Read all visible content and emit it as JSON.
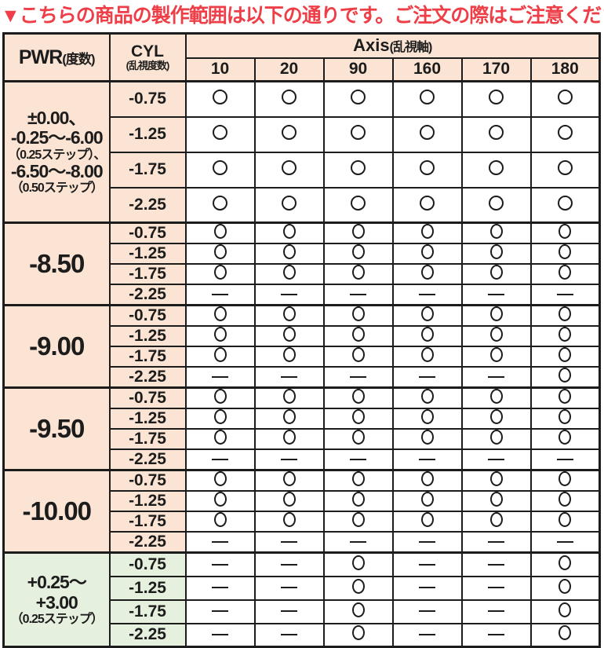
{
  "title": "▼こちらの商品の製作範囲は以下の通りです。ご注文の際はご注意ください。▼",
  "colors": {
    "warning_red": "#ee3e47",
    "header_peach": "#fbe4d3",
    "plus_range_green": "#e6f0de",
    "ink": "#1c1c1c",
    "cell_white": "#ffffff"
  },
  "symbols": {
    "available": "○",
    "unavailable": "—"
  },
  "table": {
    "pwr_header": {
      "main": "PWR",
      "sub": "(度数)"
    },
    "cyl_header": {
      "main": "CYL",
      "sub": "(乱視度数)"
    },
    "axis_header": {
      "main": "Axis",
      "sub": "(乱視軸)"
    },
    "axis_values": [
      "10",
      "20",
      "90",
      "160",
      "170",
      "180"
    ],
    "blocks": [
      {
        "theme": "peach",
        "circle_style": "round",
        "pwr_lines": [
          {
            "text": "±0.00、",
            "size": "big"
          },
          {
            "text": "-0.25～-6.00",
            "size": "big"
          },
          {
            "text": "（0.25ステップ）、",
            "size": "small"
          },
          {
            "text": "-6.50～-8.00",
            "size": "big"
          },
          {
            "text": "（0.50ステップ）",
            "size": "small"
          }
        ],
        "rows": [
          {
            "cyl": "-0.75",
            "cells": [
              "○",
              "○",
              "○",
              "○",
              "○",
              "○"
            ]
          },
          {
            "cyl": "-1.25",
            "cells": [
              "○",
              "○",
              "○",
              "○",
              "○",
              "○"
            ]
          },
          {
            "cyl": "-1.75",
            "cells": [
              "○",
              "○",
              "○",
              "○",
              "○",
              "○"
            ]
          },
          {
            "cyl": "-2.25",
            "cells": [
              "○",
              "○",
              "○",
              "○",
              "○",
              "○"
            ]
          }
        ]
      },
      {
        "theme": "peach",
        "circle_style": "oval",
        "pwr_lines": [
          {
            "text": "-8.50",
            "size": "xl"
          }
        ],
        "rows": [
          {
            "cyl": "-0.75",
            "cells": [
              "○",
              "○",
              "○",
              "○",
              "○",
              "○"
            ]
          },
          {
            "cyl": "-1.25",
            "cells": [
              "○",
              "○",
              "○",
              "○",
              "○",
              "○"
            ]
          },
          {
            "cyl": "-1.75",
            "cells": [
              "○",
              "○",
              "○",
              "○",
              "○",
              "○"
            ]
          },
          {
            "cyl": "-2.25",
            "cells": [
              "—",
              "—",
              "—",
              "—",
              "—",
              "—"
            ]
          }
        ]
      },
      {
        "theme": "peach",
        "circle_style": "oval",
        "pwr_lines": [
          {
            "text": "-9.00",
            "size": "xl"
          }
        ],
        "rows": [
          {
            "cyl": "-0.75",
            "cells": [
              "○",
              "○",
              "○",
              "○",
              "○",
              "○"
            ]
          },
          {
            "cyl": "-1.25",
            "cells": [
              "○",
              "○",
              "○",
              "○",
              "○",
              "○"
            ]
          },
          {
            "cyl": "-1.75",
            "cells": [
              "○",
              "○",
              "○",
              "○",
              "○",
              "○"
            ]
          },
          {
            "cyl": "-2.25",
            "cells": [
              "—",
              "—",
              "—",
              "—",
              "—",
              "○"
            ]
          }
        ]
      },
      {
        "theme": "peach",
        "circle_style": "oval",
        "pwr_lines": [
          {
            "text": "-9.50",
            "size": "xl"
          }
        ],
        "rows": [
          {
            "cyl": "-0.75",
            "cells": [
              "○",
              "○",
              "○",
              "○",
              "○",
              "○"
            ]
          },
          {
            "cyl": "-1.25",
            "cells": [
              "○",
              "○",
              "○",
              "○",
              "○",
              "○"
            ]
          },
          {
            "cyl": "-1.75",
            "cells": [
              "○",
              "○",
              "○",
              "○",
              "○",
              "○"
            ]
          },
          {
            "cyl": "-2.25",
            "cells": [
              "—",
              "—",
              "—",
              "—",
              "—",
              "—"
            ]
          }
        ]
      },
      {
        "theme": "peach",
        "circle_style": "oval",
        "pwr_lines": [
          {
            "text": "-10.00",
            "size": "xl"
          }
        ],
        "rows": [
          {
            "cyl": "-0.75",
            "cells": [
              "○",
              "○",
              "○",
              "○",
              "○",
              "○"
            ]
          },
          {
            "cyl": "-1.25",
            "cells": [
              "○",
              "○",
              "○",
              "○",
              "○",
              "○"
            ]
          },
          {
            "cyl": "-1.75",
            "cells": [
              "○",
              "○",
              "○",
              "○",
              "○",
              "○"
            ]
          },
          {
            "cyl": "-2.25",
            "cells": [
              "—",
              "—",
              "—",
              "—",
              "—",
              "—"
            ]
          }
        ]
      },
      {
        "theme": "green",
        "circle_style": "oval",
        "pwr_lines": [
          {
            "text": "+0.25～",
            "size": "big"
          },
          {
            "text": "+3.00",
            "size": "big"
          },
          {
            "text": "（0.25ステップ）",
            "size": "small"
          }
        ],
        "rows": [
          {
            "cyl": "-0.75",
            "cells": [
              "—",
              "—",
              "○",
              "—",
              "—",
              "○"
            ]
          },
          {
            "cyl": "-1.25",
            "cells": [
              "—",
              "—",
              "○",
              "—",
              "—",
              "○"
            ]
          },
          {
            "cyl": "-1.75",
            "cells": [
              "—",
              "—",
              "○",
              "—",
              "—",
              "○"
            ]
          },
          {
            "cyl": "-2.25",
            "cells": [
              "—",
              "—",
              "○",
              "—",
              "—",
              "○"
            ]
          }
        ]
      }
    ]
  },
  "chart_data": {
    "type": "table",
    "title": "▼こちらの商品の製作範囲は以下の通りです。ご注文の際はご注意ください。▼",
    "columns": [
      "PWR(度数)",
      "CYL(乱視度数)",
      "10",
      "20",
      "90",
      "160",
      "170",
      "180"
    ],
    "legend": {
      "○": "available",
      "—": "unavailable"
    },
    "rows": [
      [
        "±0.00、-0.25～-6.00（0.25ステップ）、-6.50～-8.00（0.50ステップ）",
        "-0.75",
        "○",
        "○",
        "○",
        "○",
        "○",
        "○"
      ],
      [
        "±0.00、-0.25～-6.00（0.25ステップ）、-6.50～-8.00（0.50ステップ）",
        "-1.25",
        "○",
        "○",
        "○",
        "○",
        "○",
        "○"
      ],
      [
        "±0.00、-0.25～-6.00（0.25ステップ）、-6.50～-8.00（0.50ステップ）",
        "-1.75",
        "○",
        "○",
        "○",
        "○",
        "○",
        "○"
      ],
      [
        "±0.00、-0.25～-6.00（0.25ステップ）、-6.50～-8.00（0.50ステップ）",
        "-2.25",
        "○",
        "○",
        "○",
        "○",
        "○",
        "○"
      ],
      [
        "-8.50",
        "-0.75",
        "○",
        "○",
        "○",
        "○",
        "○",
        "○"
      ],
      [
        "-8.50",
        "-1.25",
        "○",
        "○",
        "○",
        "○",
        "○",
        "○"
      ],
      [
        "-8.50",
        "-1.75",
        "○",
        "○",
        "○",
        "○",
        "○",
        "○"
      ],
      [
        "-8.50",
        "-2.25",
        "—",
        "—",
        "—",
        "—",
        "—",
        "—"
      ],
      [
        "-9.00",
        "-0.75",
        "○",
        "○",
        "○",
        "○",
        "○",
        "○"
      ],
      [
        "-9.00",
        "-1.25",
        "○",
        "○",
        "○",
        "○",
        "○",
        "○"
      ],
      [
        "-9.00",
        "-1.75",
        "○",
        "○",
        "○",
        "○",
        "○",
        "○"
      ],
      [
        "-9.00",
        "-2.25",
        "—",
        "—",
        "—",
        "—",
        "—",
        "○"
      ],
      [
        "-9.50",
        "-0.75",
        "○",
        "○",
        "○",
        "○",
        "○",
        "○"
      ],
      [
        "-9.50",
        "-1.25",
        "○",
        "○",
        "○",
        "○",
        "○",
        "○"
      ],
      [
        "-9.50",
        "-1.75",
        "○",
        "○",
        "○",
        "○",
        "○",
        "○"
      ],
      [
        "-9.50",
        "-2.25",
        "—",
        "—",
        "—",
        "—",
        "—",
        "—"
      ],
      [
        "-10.00",
        "-0.75",
        "○",
        "○",
        "○",
        "○",
        "○",
        "○"
      ],
      [
        "-10.00",
        "-1.25",
        "○",
        "○",
        "○",
        "○",
        "○",
        "○"
      ],
      [
        "-10.00",
        "-1.75",
        "○",
        "○",
        "○",
        "○",
        "○",
        "○"
      ],
      [
        "-10.00",
        "-2.25",
        "—",
        "—",
        "—",
        "—",
        "—",
        "—"
      ],
      [
        "+0.25～+3.00（0.25ステップ）",
        "-0.75",
        "—",
        "—",
        "○",
        "—",
        "—",
        "○"
      ],
      [
        "+0.25～+3.00（0.25ステップ）",
        "-1.25",
        "—",
        "—",
        "○",
        "—",
        "—",
        "○"
      ],
      [
        "+0.25～+3.00（0.25ステップ）",
        "-1.75",
        "—",
        "—",
        "○",
        "—",
        "—",
        "○"
      ],
      [
        "+0.25～+3.00（0.25ステップ）",
        "-2.25",
        "—",
        "—",
        "○",
        "—",
        "—",
        "○"
      ]
    ]
  }
}
